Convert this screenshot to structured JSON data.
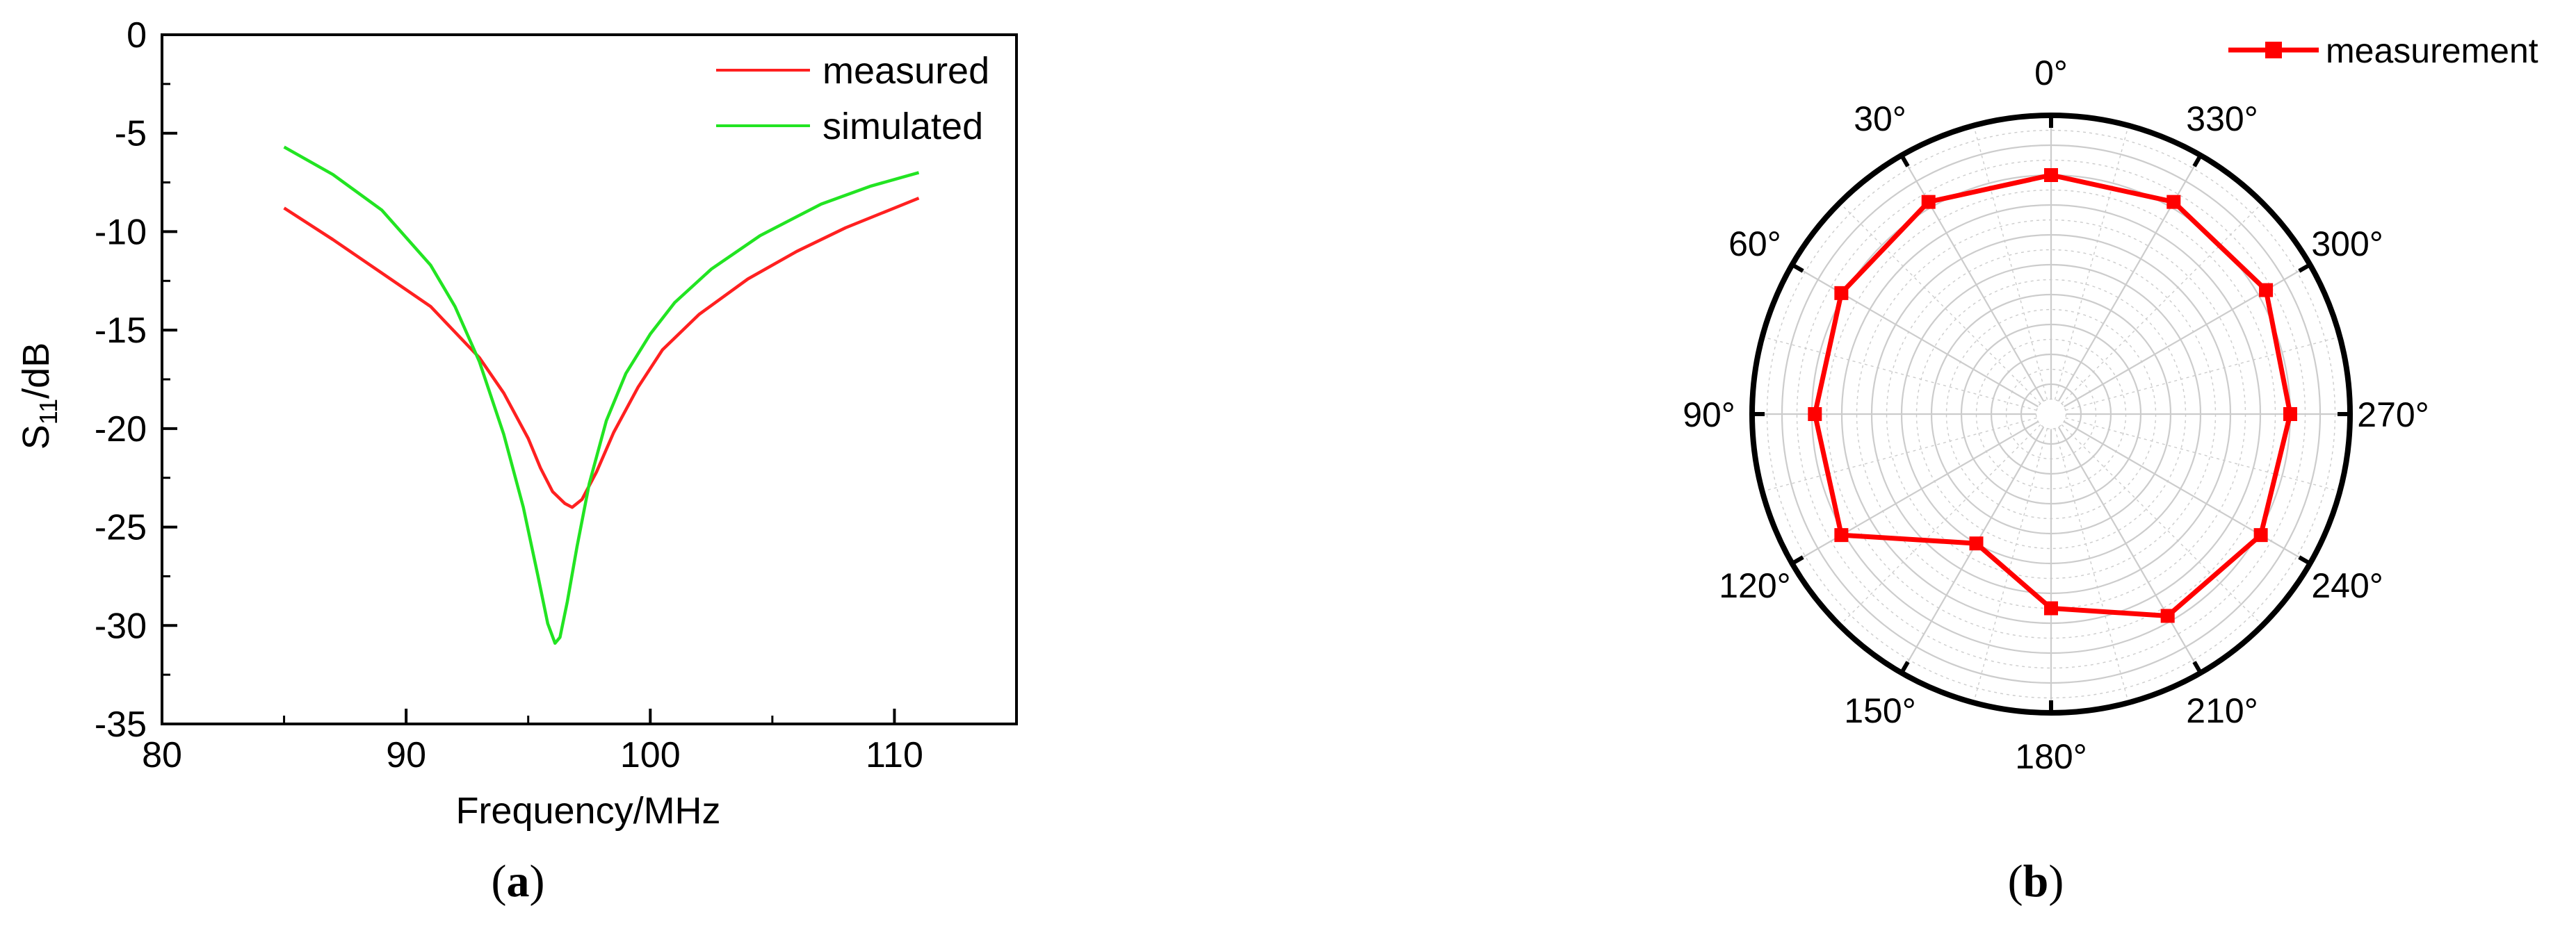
{
  "panels": {
    "a_label": "a",
    "b_label": "b"
  },
  "colors": {
    "measured": "#ff2020",
    "simulated": "#22e422",
    "measurement": "#ff0000",
    "grid": "#cccccc"
  },
  "chart_data": [
    {
      "type": "line",
      "title": "",
      "xlabel": "Frequency/MHz",
      "ylabel": "S11/dB",
      "ylabel_parts": {
        "main": "S",
        "sub": "11",
        "rest": "/dB"
      },
      "xlim": [
        80,
        115
      ],
      "ylim": [
        -35,
        0
      ],
      "x_ticks": [
        80,
        90,
        100,
        110
      ],
      "y_ticks": [
        0,
        -5,
        -10,
        -15,
        -20,
        -25,
        -30,
        -35
      ],
      "legend_position": "top-right",
      "series": [
        {
          "name": "measured",
          "color": "#ff2020",
          "x": [
            85,
            87,
            89,
            91,
            93,
            94,
            95,
            95.5,
            96,
            96.5,
            96.8,
            97.2,
            97.8,
            98.5,
            99.5,
            100.5,
            102,
            104,
            106,
            108,
            110,
            111
          ],
          "y": [
            -8.8,
            -10.4,
            -12.1,
            -13.8,
            -16.4,
            -18.2,
            -20.5,
            -22.0,
            -23.2,
            -23.8,
            -24.0,
            -23.6,
            -22.2,
            -20.2,
            -17.9,
            -16.0,
            -14.2,
            -12.4,
            -11.0,
            -9.8,
            -8.8,
            -8.3
          ]
        },
        {
          "name": "simulated",
          "color": "#22e422",
          "x": [
            85,
            87,
            89,
            91,
            92,
            93,
            94,
            94.8,
            95.4,
            95.8,
            96.1,
            96.3,
            96.6,
            97,
            97.5,
            98.2,
            99,
            100,
            101,
            102.5,
            104.5,
            107,
            109,
            111
          ],
          "y": [
            -5.7,
            -7.1,
            -8.9,
            -11.7,
            -13.8,
            -16.6,
            -20.3,
            -24.0,
            -27.5,
            -29.9,
            -30.9,
            -30.6,
            -28.8,
            -26.0,
            -22.8,
            -19.6,
            -17.2,
            -15.2,
            -13.6,
            -11.9,
            -10.2,
            -8.6,
            -7.7,
            -7.0
          ]
        }
      ]
    },
    {
      "type": "polar-line",
      "title": "",
      "angle_direction": "counterclockwise",
      "zero_position": "top",
      "angle_ticks": [
        0,
        30,
        60,
        90,
        120,
        150,
        180,
        210,
        240,
        270,
        300,
        330
      ],
      "angle_tick_labels": [
        "0°",
        "30°",
        "60°",
        "90°",
        "120°",
        "150°",
        "180°",
        "210°",
        "240°",
        "270°",
        "300°",
        "330°"
      ],
      "r_range": [
        0,
        1
      ],
      "grid": true,
      "legend_position": "top-right",
      "series": [
        {
          "name": "measurement",
          "color": "#ff0000",
          "marker": "square",
          "angle": [
            0,
            30,
            60,
            90,
            120,
            150,
            180,
            210,
            240,
            270,
            300,
            330
          ],
          "r": [
            0.8,
            0.82,
            0.81,
            0.79,
            0.81,
            0.5,
            0.65,
            0.78,
            0.81,
            0.8,
            0.83,
            0.82
          ]
        }
      ]
    }
  ]
}
